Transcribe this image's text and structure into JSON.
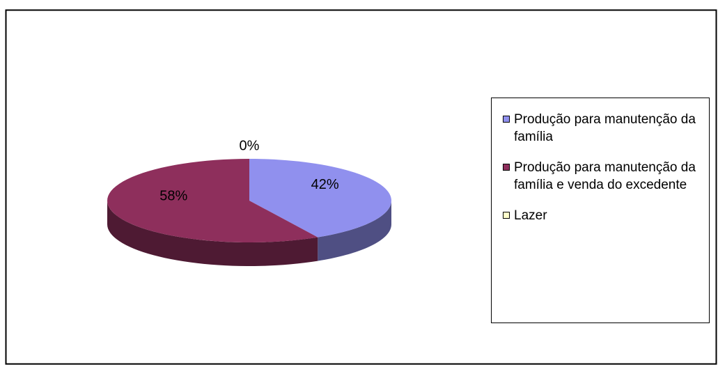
{
  "chart_data": {
    "type": "pie3d",
    "categories": [
      "Produção para manutenção da família",
      "Produção para manutenção da família e venda do excedente",
      "Lazer"
    ],
    "values": [
      42,
      58,
      0
    ],
    "value_labels": [
      "42%",
      "58%",
      "0%"
    ],
    "colors": [
      "#9090ee",
      "#8e2f5c",
      "#ffffcc"
    ],
    "legend": "right"
  }
}
